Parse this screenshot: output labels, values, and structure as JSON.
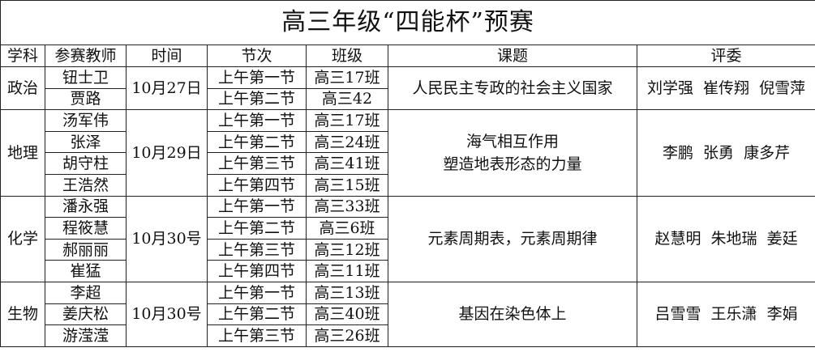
{
  "title": "高三年级“四能杯”预赛",
  "headers": [
    "学科",
    "参赛教师",
    "时间",
    "节次",
    "班级",
    "课题",
    "评委"
  ],
  "groups": [
    {
      "subject": "政治",
      "date": "10月27日",
      "topic": [
        "人民民主专政的社会主义国家"
      ],
      "judges": "刘学强  崔传翔  倪雪萍",
      "rows": [
        {
          "teacher": "钮士卫",
          "period": "上午第一节",
          "class": "高三17班"
        },
        {
          "teacher": "贾路",
          "period": "上午第二节",
          "class": "高三42"
        }
      ]
    },
    {
      "subject": "地理",
      "date": "10月29日",
      "topic": [
        "海气相互作用",
        "塑造地表形态的力量"
      ],
      "judges": "李鹏  张勇  康多芹",
      "rows": [
        {
          "teacher": "汤军伟",
          "period": "上午第一节",
          "class": "高三17班"
        },
        {
          "teacher": "张泽",
          "period": "上午第二节",
          "class": "高三24班"
        },
        {
          "teacher": "胡守柱",
          "period": "上午第三节",
          "class": "高三41班"
        },
        {
          "teacher": "王浩然",
          "period": "上午第四节",
          "class": "高三15班"
        }
      ]
    },
    {
      "subject": "化学",
      "date": "10月30号",
      "topic": [
        "元素周期表，元素周期律"
      ],
      "judges": "赵慧明  朱地瑞  姜廷",
      "rows": [
        {
          "teacher": "潘永强",
          "period": "上午第一节",
          "class": "高三33班"
        },
        {
          "teacher": "程筱慧",
          "period": "上午第二节",
          "class": "高三6班"
        },
        {
          "teacher": "郝丽丽",
          "period": "上午第三节",
          "class": "高三12班"
        },
        {
          "teacher": "崔猛",
          "period": "上午第四节",
          "class": "高三11班"
        }
      ]
    },
    {
      "subject": "生物",
      "date": "10月30号",
      "topic": [
        "基因在染色体上"
      ],
      "judges": "吕雪雪  王乐潇  李娟",
      "rows": [
        {
          "teacher": "李超",
          "period": "上午第一节",
          "class": "高三13班"
        },
        {
          "teacher": "姜庆松",
          "period": "上午第二节",
          "class": "高三40班"
        },
        {
          "teacher": "游滢滢",
          "period": "上午第三节",
          "class": "高三26班"
        }
      ]
    }
  ]
}
